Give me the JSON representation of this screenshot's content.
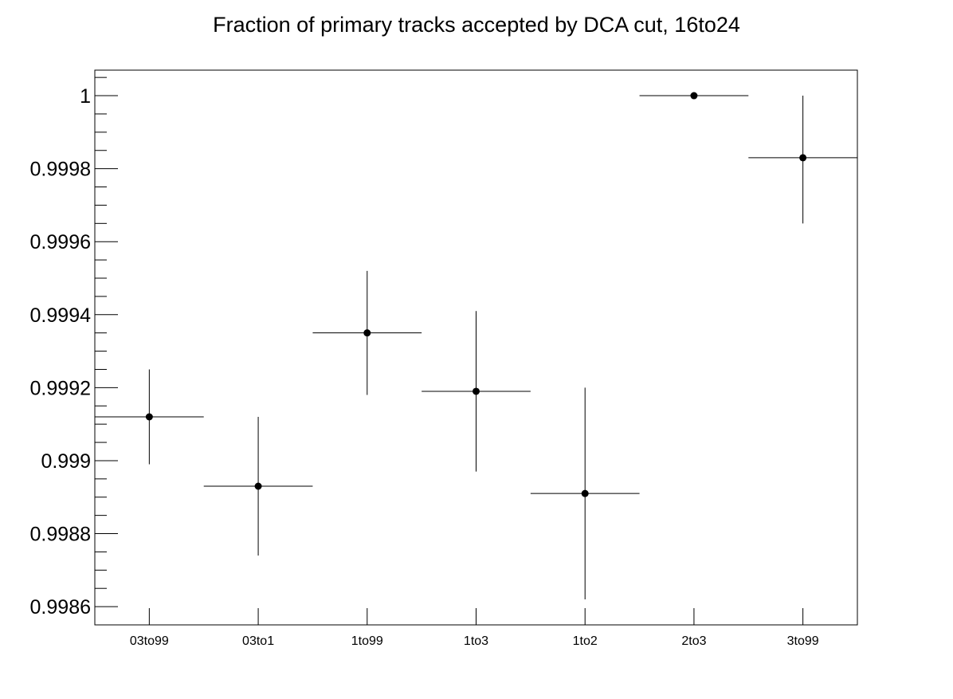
{
  "chart_data": {
    "type": "scatter",
    "title": "Fraction of primary tracks accepted by DCA cut, 16to24",
    "xlabel": "",
    "ylabel": "",
    "categories": [
      "03to99",
      "03to1",
      "1to99",
      "1to3",
      "1to2",
      "2to3",
      "3to99"
    ],
    "ylim": [
      0.99855,
      1.00007
    ],
    "yticks": [
      0.9986,
      0.9988,
      0.999,
      0.9992,
      0.9994,
      0.9996,
      0.9998,
      1
    ],
    "ytick_labels": [
      "0.9986",
      "0.9988",
      "0.999",
      "0.9992",
      "0.9994",
      "0.9996",
      "0.9998",
      "1"
    ],
    "grid": false,
    "legend": "none",
    "marker_color": "#000000",
    "series": [
      {
        "values": [
          0.99912,
          0.99893,
          0.99935,
          0.99919,
          0.99891,
          1.0,
          0.99983
        ],
        "err_low": [
          0.00013,
          0.00019,
          0.00017,
          0.00022,
          0.00029,
          0.0,
          0.00018
        ],
        "err_high": [
          0.00013,
          0.00019,
          0.00017,
          0.00022,
          0.00029,
          0.0,
          0.00017
        ]
      }
    ]
  }
}
